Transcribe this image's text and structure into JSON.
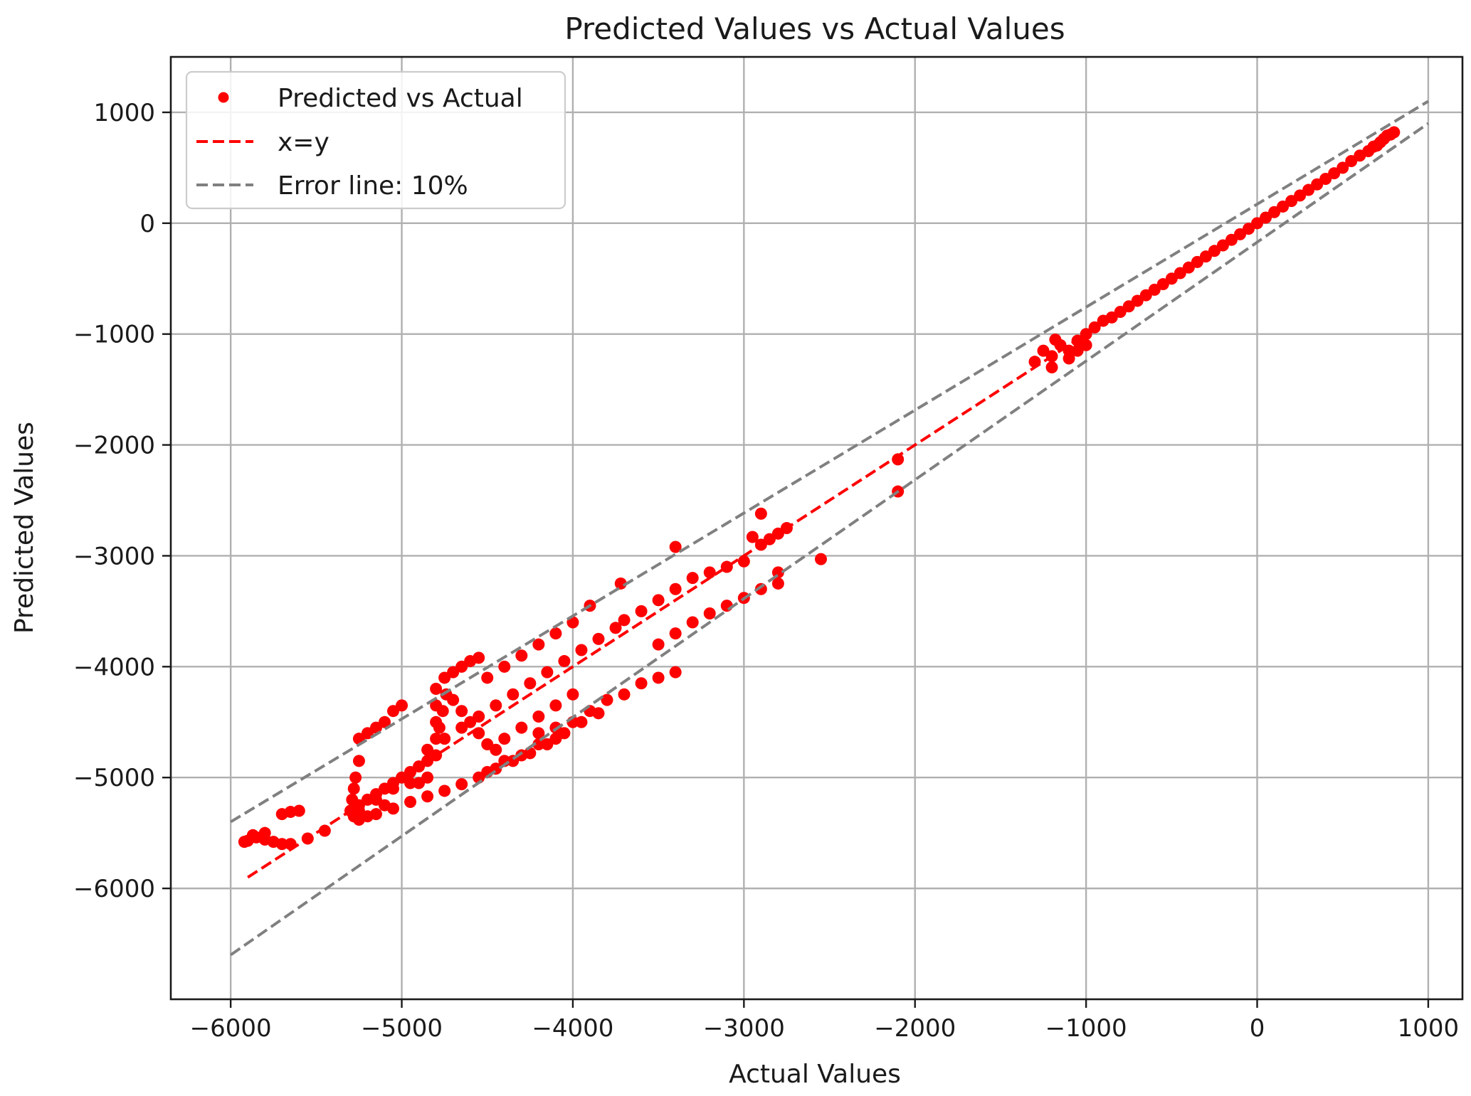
{
  "chart_data": {
    "type": "scatter",
    "title": "Predicted Values vs Actual Values",
    "xlabel": "Actual Values",
    "ylabel": "Predicted Values",
    "xlim": [
      -6350,
      1200
    ],
    "ylim": [
      -7000,
      1500
    ],
    "xticks": [
      -6000,
      -5000,
      -4000,
      -3000,
      -2000,
      -1000,
      0,
      1000
    ],
    "yticks": [
      1000,
      0,
      -1000,
      -2000,
      -3000,
      -4000,
      -5000,
      -6000
    ],
    "xtick_labels": [
      "−6000",
      "−5000",
      "−4000",
      "−3000",
      "−2000",
      "−1000",
      "0",
      "1000"
    ],
    "ytick_labels": [
      "1000",
      "0",
      "−1000",
      "−2000",
      "−3000",
      "−4000",
      "−5000",
      "−6000"
    ],
    "grid": true,
    "legend": {
      "placement": "upper-left",
      "entries": [
        {
          "label": "Predicted vs Actual",
          "kind": "scatter",
          "color": "#ff0000"
        },
        {
          "label": "x=y",
          "kind": "dashed-line",
          "color": "#ff0000"
        },
        {
          "label": "Error line: 10%",
          "kind": "dashed-line",
          "color": "#808080"
        }
      ]
    },
    "series": [
      {
        "name": "Predicted vs Actual",
        "kind": "scatter",
        "color": "#ff0000",
        "points": [
          [
            800,
            820
          ],
          [
            780,
            800
          ],
          [
            760,
            790
          ],
          [
            740,
            760
          ],
          [
            720,
            730
          ],
          [
            700,
            700
          ],
          [
            680,
            690
          ],
          [
            650,
            650
          ],
          [
            600,
            610
          ],
          [
            550,
            560
          ],
          [
            500,
            500
          ],
          [
            450,
            450
          ],
          [
            400,
            400
          ],
          [
            350,
            350
          ],
          [
            300,
            300
          ],
          [
            250,
            250
          ],
          [
            200,
            200
          ],
          [
            150,
            150
          ],
          [
            100,
            100
          ],
          [
            50,
            50
          ],
          [
            0,
            0
          ],
          [
            -50,
            -50
          ],
          [
            -100,
            -100
          ],
          [
            -150,
            -150
          ],
          [
            -200,
            -200
          ],
          [
            -250,
            -250
          ],
          [
            -300,
            -300
          ],
          [
            -350,
            -350
          ],
          [
            -400,
            -400
          ],
          [
            -450,
            -450
          ],
          [
            -500,
            -500
          ],
          [
            -550,
            -550
          ],
          [
            -600,
            -600
          ],
          [
            -650,
            -650
          ],
          [
            -700,
            -700
          ],
          [
            -750,
            -750
          ],
          [
            -800,
            -800
          ],
          [
            -850,
            -850
          ],
          [
            -900,
            -880
          ],
          [
            -950,
            -940
          ],
          [
            -1000,
            -1000
          ],
          [
            -1050,
            -1060
          ],
          [
            -1000,
            -1100
          ],
          [
            -1050,
            -1150
          ],
          [
            -1100,
            -1150
          ],
          [
            -1200,
            -1200
          ],
          [
            -1150,
            -1100
          ],
          [
            -1250,
            -1150
          ],
          [
            -1300,
            -1250
          ],
          [
            -1200,
            -1300
          ],
          [
            -1180,
            -1050
          ],
          [
            -1100,
            -1220
          ],
          [
            -2100,
            -2130
          ],
          [
            -2100,
            -2420
          ],
          [
            -2550,
            -3030
          ],
          [
            -2900,
            -2620
          ],
          [
            -2950,
            -2830
          ],
          [
            -2750,
            -2750
          ],
          [
            -2800,
            -2800
          ],
          [
            -2850,
            -2850
          ],
          [
            -2900,
            -2900
          ],
          [
            -3000,
            -3050
          ],
          [
            -3100,
            -3100
          ],
          [
            -3200,
            -3150
          ],
          [
            -3300,
            -3200
          ],
          [
            -3400,
            -3300
          ],
          [
            -3500,
            -3400
          ],
          [
            -3600,
            -3500
          ],
          [
            -3700,
            -3580
          ],
          [
            -2800,
            -3150
          ],
          [
            -2800,
            -3250
          ],
          [
            -2900,
            -3300
          ],
          [
            -3000,
            -3380
          ],
          [
            -3100,
            -3450
          ],
          [
            -3200,
            -3520
          ],
          [
            -3300,
            -3600
          ],
          [
            -3400,
            -3700
          ],
          [
            -3500,
            -3800
          ],
          [
            -3400,
            -4050
          ],
          [
            -3500,
            -4100
          ],
          [
            -3600,
            -4150
          ],
          [
            -3700,
            -4250
          ],
          [
            -3800,
            -4300
          ],
          [
            -3900,
            -4400
          ],
          [
            -4000,
            -4500
          ],
          [
            -4100,
            -4550
          ],
          [
            -4200,
            -4600
          ],
          [
            -3400,
            -2920
          ],
          [
            -3720,
            -3250
          ],
          [
            -3750,
            -3650
          ],
          [
            -3850,
            -3750
          ],
          [
            -3950,
            -3850
          ],
          [
            -4050,
            -3950
          ],
          [
            -4150,
            -4050
          ],
          [
            -4250,
            -4150
          ],
          [
            -4350,
            -4250
          ],
          [
            -4450,
            -4350
          ],
          [
            -4550,
            -4450
          ],
          [
            -4650,
            -4550
          ],
          [
            -4750,
            -4650
          ],
          [
            -4850,
            -4750
          ],
          [
            -3900,
            -3450
          ],
          [
            -4000,
            -3600
          ],
          [
            -4100,
            -3700
          ],
          [
            -4200,
            -3800
          ],
          [
            -4300,
            -3900
          ],
          [
            -4400,
            -4000
          ],
          [
            -4500,
            -4100
          ],
          [
            -3850,
            -4420
          ],
          [
            -3950,
            -4500
          ],
          [
            -4050,
            -4600
          ],
          [
            -4150,
            -4700
          ],
          [
            -4250,
            -4780
          ],
          [
            -4350,
            -4850
          ],
          [
            -4450,
            -4920
          ],
          [
            -4550,
            -5000
          ],
          [
            -4650,
            -5060
          ],
          [
            -4750,
            -5120
          ],
          [
            -4850,
            -5170
          ],
          [
            -4950,
            -5220
          ],
          [
            -5050,
            -5280
          ],
          [
            -5150,
            -5330
          ],
          [
            -5250,
            -5380
          ],
          [
            -4550,
            -3920
          ],
          [
            -4600,
            -3950
          ],
          [
            -4650,
            -4000
          ],
          [
            -4700,
            -4050
          ],
          [
            -4750,
            -4100
          ],
          [
            -4800,
            -4200
          ],
          [
            -4800,
            -4350
          ],
          [
            -4800,
            -4500
          ],
          [
            -4800,
            -4650
          ],
          [
            -4800,
            -4800
          ],
          [
            -4780,
            -4550
          ],
          [
            -4760,
            -4400
          ],
          [
            -4740,
            -4250
          ],
          [
            -4700,
            -4300
          ],
          [
            -4650,
            -4400
          ],
          [
            -4600,
            -4500
          ],
          [
            -4550,
            -4600
          ],
          [
            -4500,
            -4700
          ],
          [
            -4450,
            -4750
          ],
          [
            -4400,
            -4650
          ],
          [
            -4300,
            -4550
          ],
          [
            -4200,
            -4450
          ],
          [
            -4100,
            -4350
          ],
          [
            -4000,
            -4250
          ],
          [
            -4500,
            -4950
          ],
          [
            -4400,
            -4850
          ],
          [
            -4300,
            -4800
          ],
          [
            -4200,
            -4700
          ],
          [
            -4100,
            -4650
          ],
          [
            -5000,
            -4350
          ],
          [
            -5050,
            -4400
          ],
          [
            -5100,
            -4500
          ],
          [
            -5150,
            -4550
          ],
          [
            -5200,
            -4600
          ],
          [
            -5250,
            -4650
          ],
          [
            -5250,
            -4850
          ],
          [
            -5270,
            -5000
          ],
          [
            -5280,
            -5100
          ],
          [
            -5290,
            -5200
          ],
          [
            -5300,
            -5300
          ],
          [
            -5280,
            -5350
          ],
          [
            -5250,
            -5250
          ],
          [
            -5200,
            -5200
          ],
          [
            -5150,
            -5150
          ],
          [
            -5100,
            -5100
          ],
          [
            -5050,
            -5050
          ],
          [
            -5000,
            -5000
          ],
          [
            -4950,
            -4950
          ],
          [
            -4900,
            -4900
          ],
          [
            -4850,
            -4850
          ],
          [
            -4950,
            -5050
          ],
          [
            -5050,
            -5100
          ],
          [
            -5150,
            -5200
          ],
          [
            -5250,
            -5300
          ],
          [
            -5200,
            -5350
          ],
          [
            -5100,
            -5250
          ],
          [
            -4900,
            -5050
          ],
          [
            -4850,
            -5000
          ],
          [
            -5450,
            -5480
          ],
          [
            -5550,
            -5550
          ],
          [
            -5650,
            -5600
          ],
          [
            -5700,
            -5600
          ],
          [
            -5750,
            -5580
          ],
          [
            -5800,
            -5560
          ],
          [
            -5850,
            -5540
          ],
          [
            -5900,
            -5570
          ],
          [
            -5920,
            -5580
          ],
          [
            -5870,
            -5520
          ],
          [
            -5800,
            -5500
          ],
          [
            -5700,
            -5330
          ],
          [
            -5650,
            -5310
          ],
          [
            -5600,
            -5300
          ]
        ]
      },
      {
        "name": "x=y",
        "kind": "dashed-line",
        "color": "#ff0000",
        "x": [
          -5900,
          800
        ],
        "y": [
          -5900,
          800
        ]
      },
      {
        "name": "Error line: 10%",
        "kind": "dashed-line",
        "color": "#808080",
        "lines": [
          {
            "x": [
              -6000,
              1000
            ],
            "y": [
              -5400,
              1100
            ]
          },
          {
            "x": [
              -6000,
              1000
            ],
            "y": [
              -6600,
              900
            ]
          }
        ]
      }
    ]
  }
}
